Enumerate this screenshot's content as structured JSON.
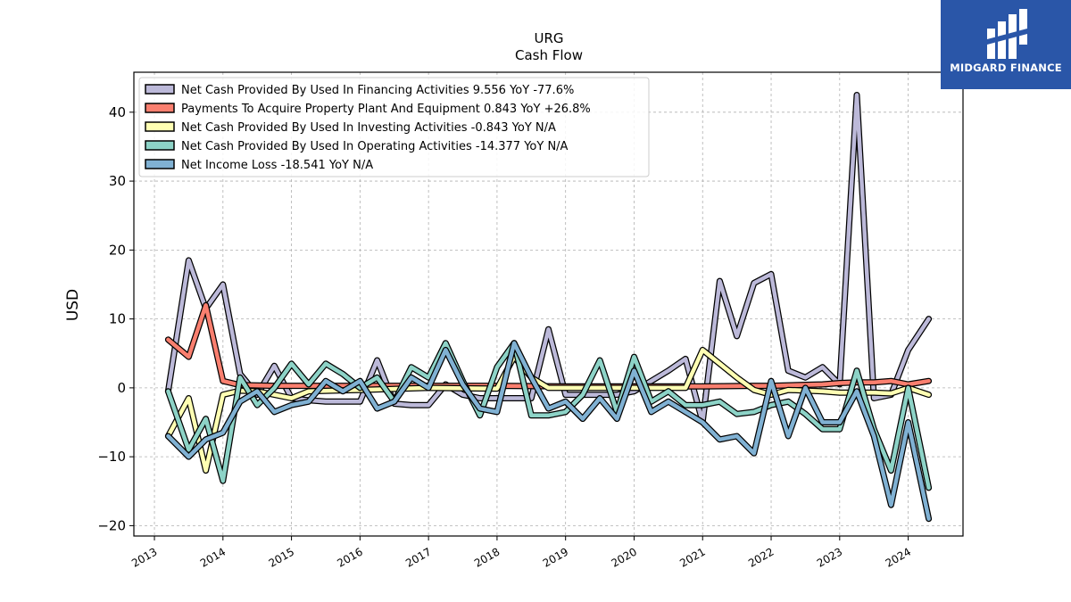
{
  "brand": {
    "name": "MIDGARD FINANCE",
    "logo_icon": "midgard-logo-icon",
    "color": "#2a56a8"
  },
  "chart_data": {
    "type": "line",
    "title": "URG",
    "subtitle": "Cash Flow",
    "ylabel": "USD",
    "xlabel": "",
    "ylim": [
      -21.5,
      45.8
    ],
    "xlim": [
      2012.7,
      2024.8
    ],
    "yticks": [
      -20,
      -10,
      0,
      10,
      20,
      30,
      40
    ],
    "ytick_labels": [
      "−20",
      "−10",
      "0",
      "10",
      "20",
      "30",
      "40"
    ],
    "xticks": [
      2013,
      2014,
      2015,
      2016,
      2017,
      2018,
      2019,
      2020,
      2021,
      2022,
      2023,
      2024
    ],
    "xtick_labels": [
      "2013",
      "2014",
      "2015",
      "2016",
      "2017",
      "2018",
      "2019",
      "2020",
      "2021",
      "2022",
      "2023",
      "2024"
    ],
    "grid": true,
    "legend_position": "top-left",
    "series": [
      {
        "name": "Net Cash Provided By Used In Financing Activities  9.556 YoY -77.6%",
        "color": "#bcb9d9",
        "points": [
          [
            2013.2,
            -0.5
          ],
          [
            2013.5,
            18.5
          ],
          [
            2013.75,
            11.5
          ],
          [
            2014.0,
            15.0
          ],
          [
            2014.25,
            2.0
          ],
          [
            2014.5,
            -1.0
          ],
          [
            2014.75,
            3.2
          ],
          [
            2015.0,
            -1.5
          ],
          [
            2015.25,
            -1.8
          ],
          [
            2015.5,
            -2.0
          ],
          [
            2015.75,
            -2.0
          ],
          [
            2016.0,
            -2.0
          ],
          [
            2016.25,
            4.0
          ],
          [
            2016.5,
            -2.3
          ],
          [
            2016.75,
            -2.5
          ],
          [
            2017.0,
            -2.5
          ],
          [
            2017.25,
            0.5
          ],
          [
            2017.5,
            -1.0
          ],
          [
            2017.75,
            -1.5
          ],
          [
            2018.0,
            -1.5
          ],
          [
            2018.25,
            -1.5
          ],
          [
            2018.5,
            -1.5
          ],
          [
            2018.75,
            8.5
          ],
          [
            2019.0,
            -1.0
          ],
          [
            2019.25,
            -1.0
          ],
          [
            2019.5,
            -1.0
          ],
          [
            2019.75,
            -1.0
          ],
          [
            2020.0,
            -0.5
          ],
          [
            2020.25,
            1.0
          ],
          [
            2020.5,
            2.5
          ],
          [
            2020.75,
            4.2
          ],
          [
            2021.0,
            -5.0
          ],
          [
            2021.25,
            15.5
          ],
          [
            2021.5,
            7.5
          ],
          [
            2021.75,
            15.2
          ],
          [
            2022.0,
            16.5
          ],
          [
            2022.25,
            2.5
          ],
          [
            2022.5,
            1.5
          ],
          [
            2022.75,
            3.0
          ],
          [
            2023.0,
            0.5
          ],
          [
            2023.25,
            42.5
          ],
          [
            2023.5,
            -1.5
          ],
          [
            2023.75,
            -1.0
          ],
          [
            2024.0,
            5.5
          ],
          [
            2024.3,
            10.0
          ]
        ]
      },
      {
        "name": "Payments To Acquire Property Plant And Equipment  0.843 YoY +26.8%",
        "color": "#fa7f6f",
        "points": [
          [
            2013.2,
            7.0
          ],
          [
            2013.5,
            4.5
          ],
          [
            2013.75,
            12.0
          ],
          [
            2014.0,
            1.0
          ],
          [
            2014.25,
            0.4
          ],
          [
            2014.75,
            0.3
          ],
          [
            2016.0,
            0.3
          ],
          [
            2017.0,
            0.3
          ],
          [
            2018.0,
            0.3
          ],
          [
            2019.0,
            0.2
          ],
          [
            2020.0,
            0.2
          ],
          [
            2020.75,
            0.2
          ],
          [
            2021.0,
            0.2
          ],
          [
            2021.75,
            0.3
          ],
          [
            2022.0,
            0.3
          ],
          [
            2022.75,
            0.5
          ],
          [
            2023.0,
            0.7
          ],
          [
            2023.25,
            0.8
          ],
          [
            2023.5,
            0.8
          ],
          [
            2023.75,
            1.0
          ],
          [
            2024.0,
            0.5
          ],
          [
            2024.3,
            1.0
          ]
        ]
      },
      {
        "name": "Net Cash Provided By Used In Investing Activities  -0.843 YoY N/A",
        "color": "#ffffb3",
        "points": [
          [
            2013.2,
            -7.0
          ],
          [
            2013.5,
            -1.5
          ],
          [
            2013.75,
            -12.0
          ],
          [
            2014.0,
            -1.0
          ],
          [
            2014.25,
            -0.4
          ],
          [
            2014.5,
            -0.5
          ],
          [
            2015.0,
            -1.5
          ],
          [
            2015.25,
            -0.5
          ],
          [
            2016.0,
            -0.3
          ],
          [
            2017.0,
            0.0
          ],
          [
            2018.0,
            -0.1
          ],
          [
            2018.25,
            4.5
          ],
          [
            2018.5,
            1.5
          ],
          [
            2018.75,
            0.0
          ],
          [
            2019.0,
            0.0
          ],
          [
            2020.0,
            0.0
          ],
          [
            2020.75,
            0.0
          ],
          [
            2021.0,
            5.5
          ],
          [
            2021.25,
            3.5
          ],
          [
            2021.5,
            1.5
          ],
          [
            2021.75,
            -0.3
          ],
          [
            2022.0,
            -1.0
          ],
          [
            2022.25,
            -0.3
          ],
          [
            2022.75,
            -0.5
          ],
          [
            2023.0,
            -0.7
          ],
          [
            2023.5,
            -0.7
          ],
          [
            2023.75,
            -0.8
          ],
          [
            2024.0,
            0.0
          ],
          [
            2024.3,
            -1.0
          ]
        ]
      },
      {
        "name": "Net Cash Provided By Used In Operating Activities  -14.377 YoY N/A",
        "color": "#8dd3c7",
        "points": [
          [
            2013.2,
            -0.5
          ],
          [
            2013.5,
            -9.0
          ],
          [
            2013.75,
            -4.5
          ],
          [
            2014.0,
            -13.5
          ],
          [
            2014.25,
            1.5
          ],
          [
            2014.5,
            -2.5
          ],
          [
            2014.75,
            0.0
          ],
          [
            2015.0,
            3.5
          ],
          [
            2015.25,
            0.5
          ],
          [
            2015.5,
            3.5
          ],
          [
            2015.75,
            2.0
          ],
          [
            2016.0,
            0.0
          ],
          [
            2016.25,
            1.5
          ],
          [
            2016.5,
            -2.0
          ],
          [
            2016.75,
            3.0
          ],
          [
            2017.0,
            1.5
          ],
          [
            2017.25,
            6.5
          ],
          [
            2017.5,
            1.0
          ],
          [
            2017.75,
            -4.0
          ],
          [
            2018.0,
            3.0
          ],
          [
            2018.25,
            6.5
          ],
          [
            2018.5,
            -4.0
          ],
          [
            2018.75,
            -4.0
          ],
          [
            2019.0,
            -3.5
          ],
          [
            2019.25,
            -1.0
          ],
          [
            2019.5,
            4.0
          ],
          [
            2019.75,
            -3.5
          ],
          [
            2020.0,
            4.5
          ],
          [
            2020.25,
            -2.0
          ],
          [
            2020.5,
            -0.5
          ],
          [
            2020.75,
            -2.5
          ],
          [
            2021.0,
            -2.5
          ],
          [
            2021.25,
            -2.0
          ],
          [
            2021.5,
            -3.8
          ],
          [
            2021.75,
            -3.5
          ],
          [
            2022.0,
            -2.5
          ],
          [
            2022.25,
            -2.0
          ],
          [
            2022.5,
            -3.8
          ],
          [
            2022.75,
            -6.0
          ],
          [
            2023.0,
            -6.0
          ],
          [
            2023.25,
            2.5
          ],
          [
            2023.5,
            -6.0
          ],
          [
            2023.75,
            -12.0
          ],
          [
            2024.0,
            0.0
          ],
          [
            2024.3,
            -14.5
          ]
        ]
      },
      {
        "name": "Net Income Loss  -18.541 YoY N/A",
        "color": "#80b1d3",
        "points": [
          [
            2013.2,
            -7.0
          ],
          [
            2013.5,
            -10.0
          ],
          [
            2013.75,
            -7.5
          ],
          [
            2014.0,
            -6.5
          ],
          [
            2014.25,
            -2.0
          ],
          [
            2014.5,
            -0.5
          ],
          [
            2014.75,
            -3.5
          ],
          [
            2015.0,
            -2.5
          ],
          [
            2015.25,
            -2.0
          ],
          [
            2015.5,
            1.0
          ],
          [
            2015.75,
            -0.5
          ],
          [
            2016.0,
            1.0
          ],
          [
            2016.25,
            -3.0
          ],
          [
            2016.5,
            -2.0
          ],
          [
            2016.75,
            1.5
          ],
          [
            2017.0,
            0.0
          ],
          [
            2017.25,
            5.5
          ],
          [
            2017.5,
            0.5
          ],
          [
            2017.75,
            -3.0
          ],
          [
            2018.0,
            -3.5
          ],
          [
            2018.25,
            6.5
          ],
          [
            2018.5,
            1.5
          ],
          [
            2018.75,
            -3.0
          ],
          [
            2019.0,
            -2.0
          ],
          [
            2019.25,
            -4.5
          ],
          [
            2019.5,
            -1.5
          ],
          [
            2019.75,
            -4.5
          ],
          [
            2020.0,
            2.5
          ],
          [
            2020.25,
            -3.5
          ],
          [
            2020.5,
            -2.0
          ],
          [
            2020.75,
            -3.5
          ],
          [
            2021.0,
            -5.0
          ],
          [
            2021.25,
            -7.5
          ],
          [
            2021.5,
            -7.0
          ],
          [
            2021.75,
            -9.5
          ],
          [
            2022.0,
            1.0
          ],
          [
            2022.25,
            -7.0
          ],
          [
            2022.5,
            0.0
          ],
          [
            2022.75,
            -5.0
          ],
          [
            2023.0,
            -5.0
          ],
          [
            2023.25,
            -0.5
          ],
          [
            2023.5,
            -7.0
          ],
          [
            2023.75,
            -17.0
          ],
          [
            2024.0,
            -5.0
          ],
          [
            2024.3,
            -19.0
          ]
        ]
      }
    ]
  }
}
